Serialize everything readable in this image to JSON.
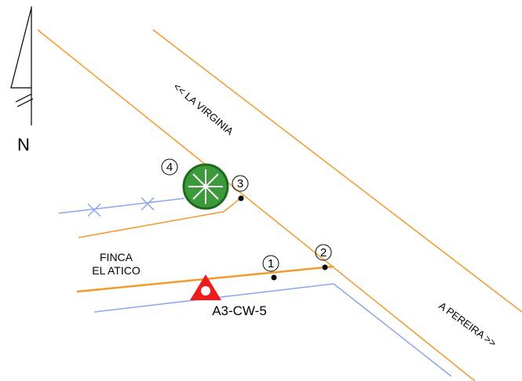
{
  "north": "N",
  "roads": {
    "upper": "<< LA VIRGINIA",
    "lower": "A PEREIRA >>"
  },
  "property": {
    "line1": "FINCA",
    "line2": "EL ATICO"
  },
  "station": "A3-CW-5",
  "points": [
    "1",
    "2",
    "3",
    "4"
  ]
}
